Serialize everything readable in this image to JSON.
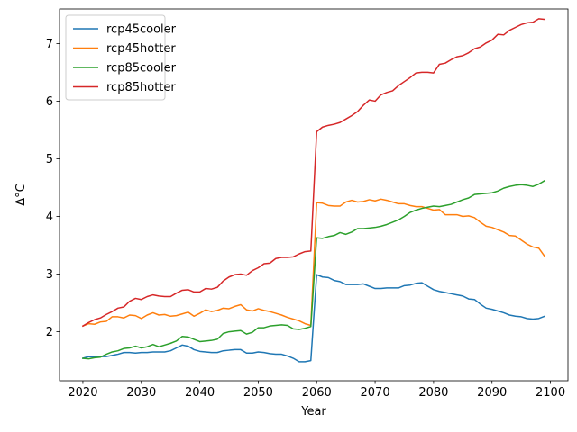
{
  "chart_data": {
    "type": "line",
    "title": "",
    "xlabel": "Year",
    "ylabel": "Δ°C",
    "xlim": [
      2016,
      2103
    ],
    "ylim": [
      1.15,
      7.6
    ],
    "xticks": [
      2020,
      2030,
      2040,
      2050,
      2060,
      2070,
      2080,
      2090,
      2100
    ],
    "yticks": [
      2,
      3,
      4,
      5,
      6,
      7
    ],
    "grid": false,
    "legend_position": "top-left",
    "x": [
      2020,
      2021,
      2022,
      2023,
      2024,
      2025,
      2026,
      2027,
      2028,
      2029,
      2030,
      2031,
      2032,
      2033,
      2034,
      2035,
      2036,
      2037,
      2038,
      2039,
      2040,
      2041,
      2042,
      2043,
      2044,
      2045,
      2046,
      2047,
      2048,
      2049,
      2050,
      2051,
      2052,
      2053,
      2054,
      2055,
      2056,
      2057,
      2058,
      2059,
      2060,
      2061,
      2062,
      2063,
      2064,
      2065,
      2066,
      2067,
      2068,
      2069,
      2070,
      2071,
      2072,
      2073,
      2074,
      2075,
      2076,
      2077,
      2078,
      2079,
      2080,
      2081,
      2082,
      2083,
      2084,
      2085,
      2086,
      2087,
      2088,
      2089,
      2090,
      2091,
      2092,
      2093,
      2094,
      2095,
      2096,
      2097,
      2098,
      2099
    ],
    "series": [
      {
        "name": "rcp45cooler",
        "color": "#1f77b4",
        "values": [
          1.54,
          1.57,
          1.56,
          1.57,
          1.57,
          1.59,
          1.61,
          1.64,
          1.64,
          1.63,
          1.64,
          1.64,
          1.65,
          1.65,
          1.65,
          1.67,
          1.72,
          1.77,
          1.75,
          1.69,
          1.66,
          1.65,
          1.64,
          1.64,
          1.67,
          1.68,
          1.69,
          1.69,
          1.63,
          1.63,
          1.65,
          1.64,
          1.62,
          1.61,
          1.61,
          1.58,
          1.54,
          1.48,
          1.48,
          1.5,
          2.99,
          2.95,
          2.94,
          2.89,
          2.87,
          2.82,
          2.82,
          2.82,
          2.83,
          2.79,
          2.75,
          2.75,
          2.76,
          2.76,
          2.76,
          2.8,
          2.81,
          2.84,
          2.85,
          2.79,
          2.73,
          2.7,
          2.68,
          2.66,
          2.64,
          2.62,
          2.57,
          2.56,
          2.48,
          2.41,
          2.39,
          2.36,
          2.33,
          2.29,
          2.27,
          2.26,
          2.23,
          2.22,
          2.23,
          2.27
        ]
      },
      {
        "name": "rcp45hotter",
        "color": "#ff7f0e",
        "values": [
          2.1,
          2.14,
          2.13,
          2.17,
          2.18,
          2.26,
          2.26,
          2.24,
          2.29,
          2.28,
          2.23,
          2.29,
          2.33,
          2.29,
          2.3,
          2.27,
          2.28,
          2.31,
          2.34,
          2.27,
          2.32,
          2.38,
          2.35,
          2.37,
          2.41,
          2.4,
          2.44,
          2.47,
          2.38,
          2.36,
          2.4,
          2.37,
          2.35,
          2.32,
          2.29,
          2.25,
          2.22,
          2.19,
          2.14,
          2.11,
          4.24,
          4.23,
          4.19,
          4.18,
          4.18,
          4.25,
          4.28,
          4.25,
          4.26,
          4.29,
          4.27,
          4.3,
          4.28,
          4.25,
          4.22,
          4.22,
          4.19,
          4.17,
          4.17,
          4.14,
          4.11,
          4.12,
          4.03,
          4.03,
          4.03,
          4.0,
          4.01,
          3.98,
          3.9,
          3.83,
          3.81,
          3.77,
          3.73,
          3.67,
          3.66,
          3.59,
          3.52,
          3.47,
          3.45,
          3.31
        ]
      },
      {
        "name": "rcp85cooler",
        "color": "#2ca02c",
        "values": [
          1.54,
          1.53,
          1.55,
          1.56,
          1.61,
          1.65,
          1.67,
          1.71,
          1.72,
          1.75,
          1.72,
          1.74,
          1.78,
          1.74,
          1.77,
          1.8,
          1.84,
          1.92,
          1.91,
          1.87,
          1.83,
          1.84,
          1.85,
          1.87,
          1.97,
          2.0,
          2.01,
          2.02,
          1.96,
          1.99,
          2.07,
          2.07,
          2.1,
          2.11,
          2.12,
          2.11,
          2.05,
          2.04,
          2.06,
          2.09,
          3.63,
          3.62,
          3.65,
          3.67,
          3.72,
          3.69,
          3.73,
          3.79,
          3.79,
          3.8,
          3.81,
          3.83,
          3.86,
          3.9,
          3.94,
          4.0,
          4.07,
          4.11,
          4.14,
          4.16,
          4.18,
          4.17,
          4.19,
          4.21,
          4.25,
          4.29,
          4.32,
          4.38,
          4.39,
          4.4,
          4.41,
          4.44,
          4.49,
          4.52,
          4.54,
          4.55,
          4.54,
          4.52,
          4.56,
          4.62
        ]
      },
      {
        "name": "rcp85hotter",
        "color": "#d62728",
        "values": [
          2.1,
          2.16,
          2.21,
          2.24,
          2.3,
          2.35,
          2.41,
          2.43,
          2.53,
          2.58,
          2.56,
          2.61,
          2.64,
          2.62,
          2.61,
          2.61,
          2.67,
          2.72,
          2.73,
          2.69,
          2.69,
          2.75,
          2.74,
          2.77,
          2.88,
          2.95,
          2.99,
          3.0,
          2.98,
          3.06,
          3.11,
          3.18,
          3.19,
          3.27,
          3.29,
          3.29,
          3.3,
          3.35,
          3.39,
          3.4,
          5.47,
          5.55,
          5.58,
          5.6,
          5.63,
          5.69,
          5.75,
          5.82,
          5.93,
          6.02,
          6.0,
          6.11,
          6.15,
          6.18,
          6.27,
          6.34,
          6.41,
          6.49,
          6.5,
          6.5,
          6.49,
          6.64,
          6.66,
          6.72,
          6.77,
          6.79,
          6.84,
          6.91,
          6.94,
          7.01,
          7.06,
          7.16,
          7.15,
          7.23,
          7.28,
          7.33,
          7.36,
          7.37,
          7.43,
          7.42
        ]
      }
    ]
  }
}
